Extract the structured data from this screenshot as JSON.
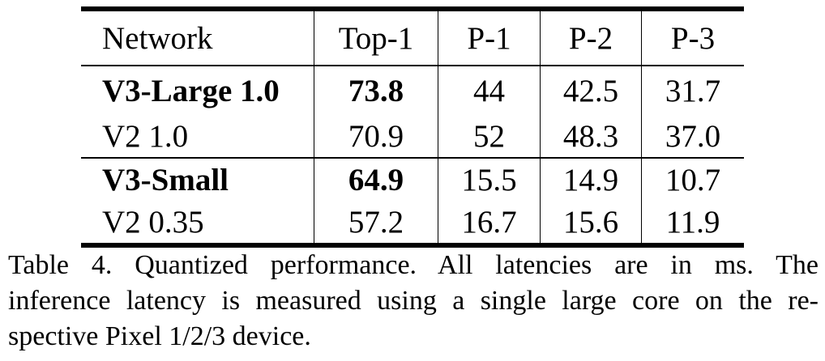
{
  "table": {
    "headers": [
      "Network",
      "Top-1",
      "P-1",
      "P-2",
      "P-3"
    ],
    "groups": [
      [
        {
          "cells": [
            "V3-Large 1.0",
            "73.8",
            "44",
            "42.5",
            "31.7"
          ],
          "bold": [
            true,
            true,
            false,
            false,
            false
          ]
        },
        {
          "cells": [
            "V2 1.0",
            "70.9",
            "52",
            "48.3",
            "37.0"
          ],
          "bold": [
            false,
            false,
            false,
            false,
            false
          ]
        }
      ],
      [
        {
          "cells": [
            "V3-Small",
            "64.9",
            "15.5",
            "14.9",
            "10.7"
          ],
          "bold": [
            true,
            true,
            false,
            false,
            false
          ]
        },
        {
          "cells": [
            "V2 0.35",
            "57.2",
            "16.7",
            "15.6",
            "11.9"
          ],
          "bold": [
            false,
            false,
            false,
            false,
            false
          ]
        }
      ]
    ]
  },
  "caption": {
    "lines": [
      "Table 4. Quantized performance.  All latencies are in ms.  The",
      "inference latency is measured using a single large core on the re-",
      "spective Pixel 1/2/3 device."
    ]
  }
}
